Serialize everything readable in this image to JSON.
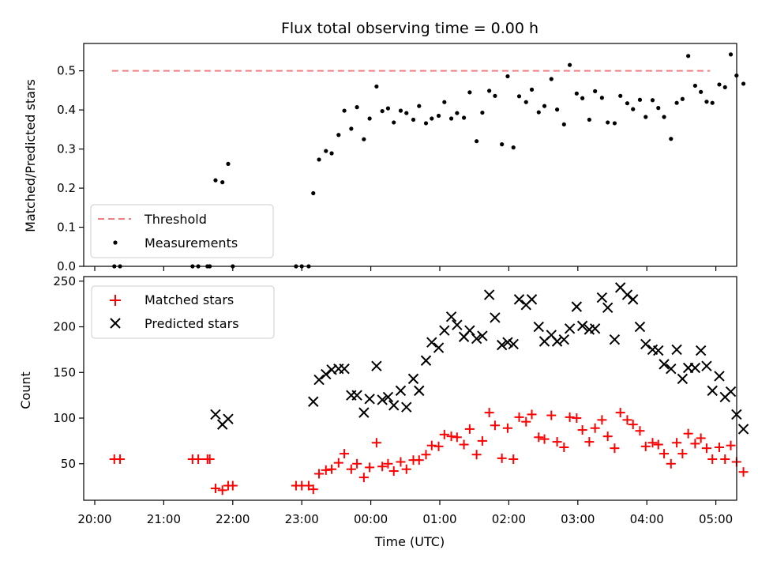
{
  "chart_data": [
    {
      "type": "scatter",
      "title": "Flux total observing time = 0.00 h",
      "xlabel": "",
      "ylabel": "Matched/Predicted stars",
      "ylim": [
        0,
        0.57
      ],
      "yticks": [
        "0.0",
        "0.1",
        "0.2",
        "0.3",
        "0.4",
        "0.5"
      ],
      "legend_position": "lower-left",
      "series": [
        {
          "name": "Threshold",
          "kind": "dashed-line",
          "color": "#f08080",
          "x": [
            "20:15",
            "04:55"
          ],
          "values": [
            0.5,
            0.5
          ]
        },
        {
          "name": "Measurements",
          "kind": "dot",
          "color": "#000000",
          "points": [
            [
              "20:17",
              0
            ],
            [
              "20:22",
              0
            ],
            [
              "21:25",
              0
            ],
            [
              "21:30",
              0
            ],
            [
              "21:38",
              0
            ],
            [
              "21:40",
              0
            ],
            [
              "21:45",
              0.22
            ],
            [
              "21:51",
              0.215
            ],
            [
              "21:56",
              0.262
            ],
            [
              "22:00",
              0
            ],
            [
              "22:55",
              0
            ],
            [
              "23:00",
              0
            ],
            [
              "23:06",
              0
            ],
            [
              "23:10",
              0.187
            ],
            [
              "23:15",
              0.273
            ],
            [
              "23:21",
              0.295
            ],
            [
              "23:26",
              0.289
            ],
            [
              "23:32",
              0.336
            ],
            [
              "23:37",
              0.398
            ],
            [
              "23:43",
              0.352
            ],
            [
              "23:48",
              0.407
            ],
            [
              "23:54",
              0.325
            ],
            [
              "23:59",
              0.378
            ],
            [
              "00:05",
              0.46
            ],
            [
              "00:10",
              0.397
            ],
            [
              "00:15",
              0.404
            ],
            [
              "00:20",
              0.368
            ],
            [
              "00:26",
              0.398
            ],
            [
              "00:31",
              0.392
            ],
            [
              "00:37",
              0.375
            ],
            [
              "00:42",
              0.41
            ],
            [
              "00:48",
              0.366
            ],
            [
              "00:53",
              0.378
            ],
            [
              "00:59",
              0.385
            ],
            [
              "01:04",
              0.42
            ],
            [
              "01:10",
              0.378
            ],
            [
              "01:15",
              0.392
            ],
            [
              "01:21",
              0.38
            ],
            [
              "01:26",
              0.445
            ],
            [
              "01:32",
              0.32
            ],
            [
              "01:37",
              0.393
            ],
            [
              "01:43",
              0.449
            ],
            [
              "01:48",
              0.436
            ],
            [
              "01:54",
              0.312
            ],
            [
              "01:59",
              0.486
            ],
            [
              "02:04",
              0.304
            ],
            [
              "02:09",
              0.435
            ],
            [
              "02:15",
              0.42
            ],
            [
              "02:20",
              0.452
            ],
            [
              "02:26",
              0.394
            ],
            [
              "02:31",
              0.41
            ],
            [
              "02:37",
              0.479
            ],
            [
              "02:42",
              0.401
            ],
            [
              "02:48",
              0.363
            ],
            [
              "02:53",
              0.515
            ],
            [
              "02:59",
              0.442
            ],
            [
              "03:04",
              0.43
            ],
            [
              "03:10",
              0.375
            ],
            [
              "03:15",
              0.448
            ],
            [
              "03:21",
              0.431
            ],
            [
              "03:26",
              0.368
            ],
            [
              "03:32",
              0.366
            ],
            [
              "03:37",
              0.436
            ],
            [
              "03:43",
              0.417
            ],
            [
              "03:48",
              0.402
            ],
            [
              "03:54",
              0.426
            ],
            [
              "03:59",
              0.382
            ],
            [
              "04:05",
              0.425
            ],
            [
              "04:10",
              0.405
            ],
            [
              "04:15",
              0.382
            ],
            [
              "04:21",
              0.326
            ],
            [
              "04:26",
              0.418
            ],
            [
              "04:31",
              0.428
            ],
            [
              "04:36",
              0.538
            ],
            [
              "04:42",
              0.462
            ],
            [
              "04:47",
              0.446
            ],
            [
              "04:52",
              0.421
            ],
            [
              "04:57",
              0.418
            ],
            [
              "05:03",
              0.465
            ],
            [
              "05:08",
              0.458
            ],
            [
              "05:13",
              0.542
            ],
            [
              "05:18",
              0.488
            ],
            [
              "05:24",
              0.467
            ]
          ]
        }
      ]
    },
    {
      "type": "scatter",
      "title": "",
      "xlabel": "Time (UTC)",
      "ylabel": "Count",
      "ylim": [
        10,
        255
      ],
      "yticks": [
        "50",
        "100",
        "150",
        "200",
        "250"
      ],
      "xticks": [
        "20:00",
        "21:00",
        "22:00",
        "23:00",
        "00:00",
        "01:00",
        "02:00",
        "03:00",
        "04:00",
        "05:00"
      ],
      "legend_position": "upper-left",
      "series": [
        {
          "name": "Matched stars",
          "kind": "plus",
          "color": "#ff0000",
          "points": [
            [
              "20:17",
              55
            ],
            [
              "20:22",
              55
            ],
            [
              "21:25",
              55
            ],
            [
              "21:30",
              55
            ],
            [
              "21:38",
              55
            ],
            [
              "21:40",
              55
            ],
            [
              "21:45",
              23
            ],
            [
              "21:51",
              21
            ],
            [
              "21:56",
              26
            ],
            [
              "22:00",
              26
            ],
            [
              "22:55",
              26
            ],
            [
              "23:00",
              26
            ],
            [
              "23:06",
              26
            ],
            [
              "23:10",
              22
            ],
            [
              "23:15",
              39
            ],
            [
              "23:21",
              43
            ],
            [
              "23:26",
              44
            ],
            [
              "23:32",
              51
            ],
            [
              "23:37",
              61
            ],
            [
              "23:43",
              44
            ],
            [
              "23:48",
              50
            ],
            [
              "23:54",
              35
            ],
            [
              "23:59",
              46
            ],
            [
              "00:05",
              73
            ],
            [
              "00:10",
              47
            ],
            [
              "00:15",
              50
            ],
            [
              "00:20",
              42
            ],
            [
              "00:26",
              52
            ],
            [
              "00:31",
              44
            ],
            [
              "00:37",
              54
            ],
            [
              "00:42",
              54
            ],
            [
              "00:48",
              60
            ],
            [
              "00:53",
              70
            ],
            [
              "00:59",
              69
            ],
            [
              "01:04",
              82
            ],
            [
              "01:10",
              80
            ],
            [
              "01:15",
              79
            ],
            [
              "01:21",
              71
            ],
            [
              "01:26",
              88
            ],
            [
              "01:32",
              60
            ],
            [
              "01:37",
              75
            ],
            [
              "01:43",
              106
            ],
            [
              "01:48",
              92
            ],
            [
              "01:54",
              56
            ],
            [
              "01:59",
              89
            ],
            [
              "02:04",
              55
            ],
            [
              "02:09",
              101
            ],
            [
              "02:15",
              96
            ],
            [
              "02:20",
              104
            ],
            [
              "02:26",
              79
            ],
            [
              "02:31",
              77
            ],
            [
              "02:37",
              103
            ],
            [
              "02:42",
              74
            ],
            [
              "02:48",
              68
            ],
            [
              "02:53",
              101
            ],
            [
              "02:59",
              100
            ],
            [
              "03:04",
              87
            ],
            [
              "03:10",
              74
            ],
            [
              "03:15",
              89
            ],
            [
              "03:21",
              98
            ],
            [
              "03:26",
              80
            ],
            [
              "03:32",
              67
            ],
            [
              "03:37",
              106
            ],
            [
              "03:43",
              98
            ],
            [
              "03:48",
              93
            ],
            [
              "03:54",
              86
            ],
            [
              "03:59",
              69
            ],
            [
              "04:05",
              73
            ],
            [
              "04:10",
              71
            ],
            [
              "04:15",
              61
            ],
            [
              "04:21",
              50
            ],
            [
              "04:26",
              73
            ],
            [
              "04:31",
              61
            ],
            [
              "04:36",
              83
            ],
            [
              "04:42",
              72
            ],
            [
              "04:47",
              78
            ],
            [
              "04:52",
              67
            ],
            [
              "04:57",
              55
            ],
            [
              "05:03",
              68
            ],
            [
              "05:08",
              55
            ],
            [
              "05:13",
              70
            ],
            [
              "05:18",
              52
            ],
            [
              "05:24",
              41
            ]
          ]
        },
        {
          "name": "Predicted stars",
          "kind": "cross",
          "color": "#000000",
          "points": [
            [
              "21:45",
              104
            ],
            [
              "21:51",
              93
            ],
            [
              "21:56",
              99
            ],
            [
              "23:10",
              118
            ],
            [
              "23:15",
              142
            ],
            [
              "23:21",
              148
            ],
            [
              "23:26",
              153
            ],
            [
              "23:32",
              154
            ],
            [
              "23:37",
              154
            ],
            [
              "23:43",
              125
            ],
            [
              "23:48",
              125
            ],
            [
              "23:54",
              106
            ],
            [
              "23:59",
              121
            ],
            [
              "00:05",
              157
            ],
            [
              "00:10",
              120
            ],
            [
              "00:15",
              123
            ],
            [
              "00:20",
              114
            ],
            [
              "00:26",
              130
            ],
            [
              "00:31",
              112
            ],
            [
              "00:37",
              143
            ],
            [
              "00:42",
              130
            ],
            [
              "00:48",
              163
            ],
            [
              "00:53",
              183
            ],
            [
              "00:59",
              177
            ],
            [
              "01:04",
              196
            ],
            [
              "01:10",
              211
            ],
            [
              "01:15",
              202
            ],
            [
              "01:21",
              189
            ],
            [
              "01:26",
              196
            ],
            [
              "01:32",
              187
            ],
            [
              "01:37",
              190
            ],
            [
              "01:43",
              235
            ],
            [
              "01:48",
              210
            ],
            [
              "01:54",
              180
            ],
            [
              "01:59",
              183
            ],
            [
              "02:04",
              181
            ],
            [
              "02:09",
              230
            ],
            [
              "02:15",
              224
            ],
            [
              "02:20",
              230
            ],
            [
              "02:26",
              200
            ],
            [
              "02:31",
              184
            ],
            [
              "02:37",
              191
            ],
            [
              "02:42",
              184
            ],
            [
              "02:48",
              186
            ],
            [
              "02:53",
              198
            ],
            [
              "02:59",
              222
            ],
            [
              "03:04",
              201
            ],
            [
              "03:10",
              197
            ],
            [
              "03:15",
              198
            ],
            [
              "03:21",
              232
            ],
            [
              "03:26",
              221
            ],
            [
              "03:32",
              186
            ],
            [
              "03:37",
              243
            ],
            [
              "03:43",
              235
            ],
            [
              "03:48",
              230
            ],
            [
              "03:54",
              200
            ],
            [
              "03:59",
              181
            ],
            [
              "04:05",
              175
            ],
            [
              "04:10",
              174
            ],
            [
              "04:15",
              159
            ],
            [
              "04:21",
              154
            ],
            [
              "04:26",
              175
            ],
            [
              "04:31",
              143
            ],
            [
              "04:36",
              155
            ],
            [
              "04:42",
              155
            ],
            [
              "04:47",
              174
            ],
            [
              "04:52",
              157
            ],
            [
              "04:57",
              130
            ],
            [
              "05:03",
              146
            ],
            [
              "05:08",
              123
            ],
            [
              "05:13",
              129
            ],
            [
              "05:18",
              104
            ],
            [
              "05:24",
              88
            ]
          ]
        }
      ]
    }
  ]
}
